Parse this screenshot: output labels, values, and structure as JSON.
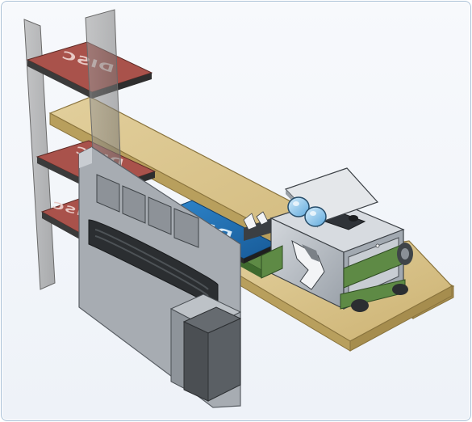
{
  "diagram": {
    "disc_labels": [
      "DISC",
      "DISC",
      "DISC",
      "DISC"
    ],
    "colors": {
      "background": "#eef2f8",
      "frame_border": "#a9c0d6",
      "table_top": "#d8c28a",
      "table_side": "#b89f5d",
      "disc_red": "#a9524b",
      "disc_blue": "#1f6fb5",
      "rack_glass": "#8c8c8c",
      "machine_body": "#bfc5cc",
      "belt_green": "#5e8a45",
      "lens_blue": "#8fc8f0"
    },
    "icons": [
      "disc-icon",
      "binoculars-icon",
      "conveyor-icon"
    ]
  }
}
